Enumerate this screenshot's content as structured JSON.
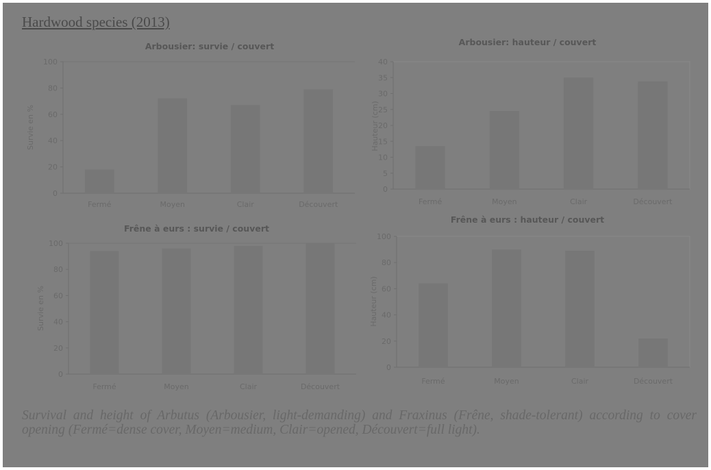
{
  "heading": "Hardwood species (2013)",
  "caption": "Survival and height of Arbutus (Arbousier, light-demanding) and Fraxinus (Frêne, shade-tolerant) according to cover opening (Fermé=dense cover, Moyen=medium, Clair=opened, Découvert=full light).",
  "colors": {
    "background": "#7f7f7f",
    "bar": "#777777",
    "text": "#6a6a6a"
  },
  "chart_data": [
    {
      "id": "arb-survie",
      "type": "bar",
      "title": "Arbousier: survie / couvert",
      "ylabel": "Survie en %",
      "xlabel": "",
      "categories": [
        "Fermé",
        "Moyen",
        "Clair",
        "Découvert"
      ],
      "values": [
        18,
        72,
        67,
        79
      ],
      "ylim": [
        0,
        100
      ],
      "yticks": [
        0,
        20,
        40,
        60,
        80,
        100
      ],
      "grid": false
    },
    {
      "id": "arb-hauteur",
      "type": "bar",
      "title": "Arbousier: hauteur / couvert",
      "ylabel": "Hauteur (cm)",
      "xlabel": "",
      "categories": [
        "Fermé",
        "Moyen",
        "Clair",
        "Découvert"
      ],
      "values": [
        13.5,
        24.5,
        35,
        33.8
      ],
      "ylim": [
        0,
        40
      ],
      "yticks": [
        0,
        5,
        10,
        15,
        20,
        25,
        30,
        35,
        40
      ],
      "grid": false
    },
    {
      "id": "fra-survie",
      "type": "bar",
      "title": "Frêne à eurs : survie / couvert",
      "ylabel": "Survie en %",
      "xlabel": "",
      "categories": [
        "Fermé",
        "Moyen",
        "Clair",
        "Découvert"
      ],
      "values": [
        94,
        96,
        98,
        100
      ],
      "ylim": [
        0,
        100
      ],
      "yticks": [
        0,
        20,
        40,
        60,
        80,
        100
      ],
      "grid": false
    },
    {
      "id": "fra-hauteur",
      "type": "bar",
      "title": "Frêne à eurs : hauteur / couvert",
      "ylabel": "Hauteur (cm)",
      "xlabel": "",
      "categories": [
        "Fermé",
        "Moyen",
        "Clair",
        "Découvert"
      ],
      "values": [
        64,
        90,
        89,
        22
      ],
      "ylim": [
        0,
        100
      ],
      "yticks": [
        0,
        20,
        40,
        60,
        80,
        100
      ],
      "grid": false
    }
  ]
}
